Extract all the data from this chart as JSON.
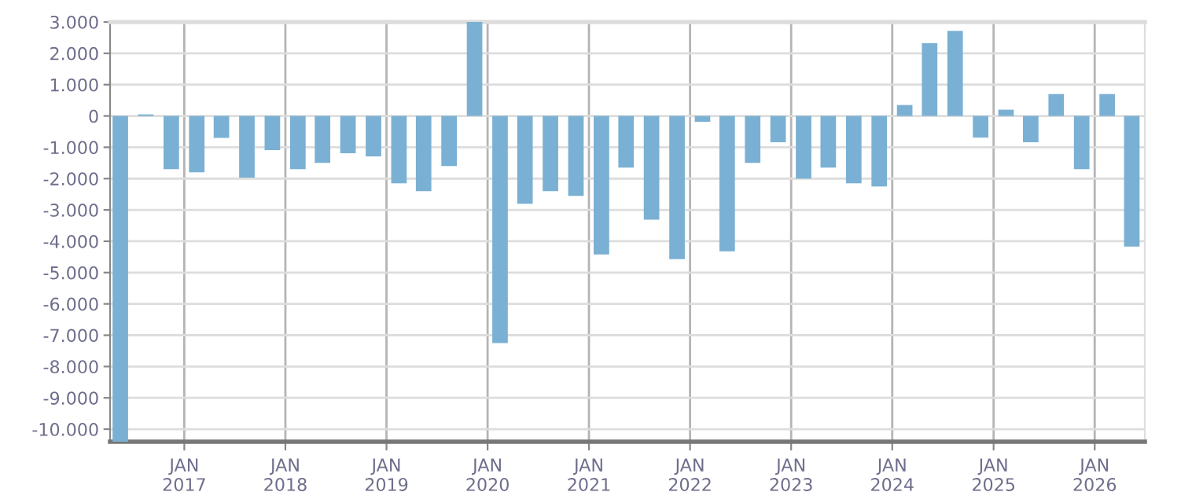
{
  "chart_data": {
    "type": "bar",
    "color": "#7ab0d3",
    "grid": true,
    "legend": false,
    "x": [
      "2016-05-15",
      "2016-08-15",
      "2016-11-15",
      "2017-02-15",
      "2017-05-15",
      "2017-08-15",
      "2017-11-15",
      "2018-02-15",
      "2018-05-15",
      "2018-08-15",
      "2018-11-15",
      "2019-02-15",
      "2019-05-15",
      "2019-08-15",
      "2019-11-15",
      "2020-02-15",
      "2020-05-15",
      "2020-08-15",
      "2020-11-15",
      "2021-02-15",
      "2021-05-15",
      "2021-08-15",
      "2021-11-15",
      "2022-02-15",
      "2022-05-15",
      "2022-08-15",
      "2022-11-15",
      "2023-02-15",
      "2023-05-15",
      "2023-08-15",
      "2023-11-15",
      "2024-02-15",
      "2024-05-15",
      "2024-08-15",
      "2024-11-15",
      "2025-02-15",
      "2025-05-15",
      "2025-08-15",
      "2025-11-15",
      "2026-02-15",
      "2026-05-15"
    ],
    "values": [
      -10400,
      50,
      -1700,
      -1800,
      -700,
      -1970,
      -1090,
      -1700,
      -1500,
      -1190,
      -1290,
      -2150,
      -2400,
      -1600,
      3000,
      -7250,
      -2800,
      -2400,
      -2550,
      -4420,
      -1650,
      -3310,
      -4570,
      -185,
      -4320,
      -1500,
      -840,
      -2000,
      -1650,
      -2150,
      -2250,
      350,
      2320,
      2720,
      -690,
      200,
      -840,
      700,
      -1700,
      700,
      -4170
    ],
    "xlim": [
      "2016-04-08",
      "2026-07-01"
    ],
    "xticks": [
      {
        "value": "2017-01-01",
        "label": "JAN\n2017"
      },
      {
        "value": "2018-01-01",
        "label": "JAN\n2018"
      },
      {
        "value": "2019-01-01",
        "label": "JAN\n2019"
      },
      {
        "value": "2020-01-01",
        "label": "JAN\n2020"
      },
      {
        "value": "2021-01-01",
        "label": "JAN\n2021"
      },
      {
        "value": "2022-01-01",
        "label": "JAN\n2022"
      },
      {
        "value": "2023-01-01",
        "label": "JAN\n2023"
      },
      {
        "value": "2024-01-01",
        "label": "JAN\n2024"
      },
      {
        "value": "2025-01-01",
        "label": "JAN\n2025"
      },
      {
        "value": "2026-01-01",
        "label": "JAN\n2026"
      }
    ],
    "ylim": [
      -10400,
      3000
    ],
    "yticks": [
      {
        "value": 3000,
        "label": "3.000"
      },
      {
        "value": 2000,
        "label": "2.000"
      },
      {
        "value": 1000,
        "label": "1.000"
      },
      0,
      {
        "value": -1000,
        "label": "-1.000"
      },
      {
        "value": -2000,
        "label": "-2.000"
      },
      {
        "value": -3000,
        "label": "-3.000"
      },
      {
        "value": -4000,
        "label": "-4.000"
      },
      {
        "value": -5000,
        "label": "-5.000"
      },
      {
        "value": -6000,
        "label": "-6.000"
      },
      {
        "value": -7000,
        "label": "-7.000"
      },
      {
        "value": -8000,
        "label": "-8.000"
      },
      {
        "value": -9000,
        "label": "-9.000"
      },
      {
        "value": -10000,
        "label": "-10.000"
      }
    ]
  }
}
